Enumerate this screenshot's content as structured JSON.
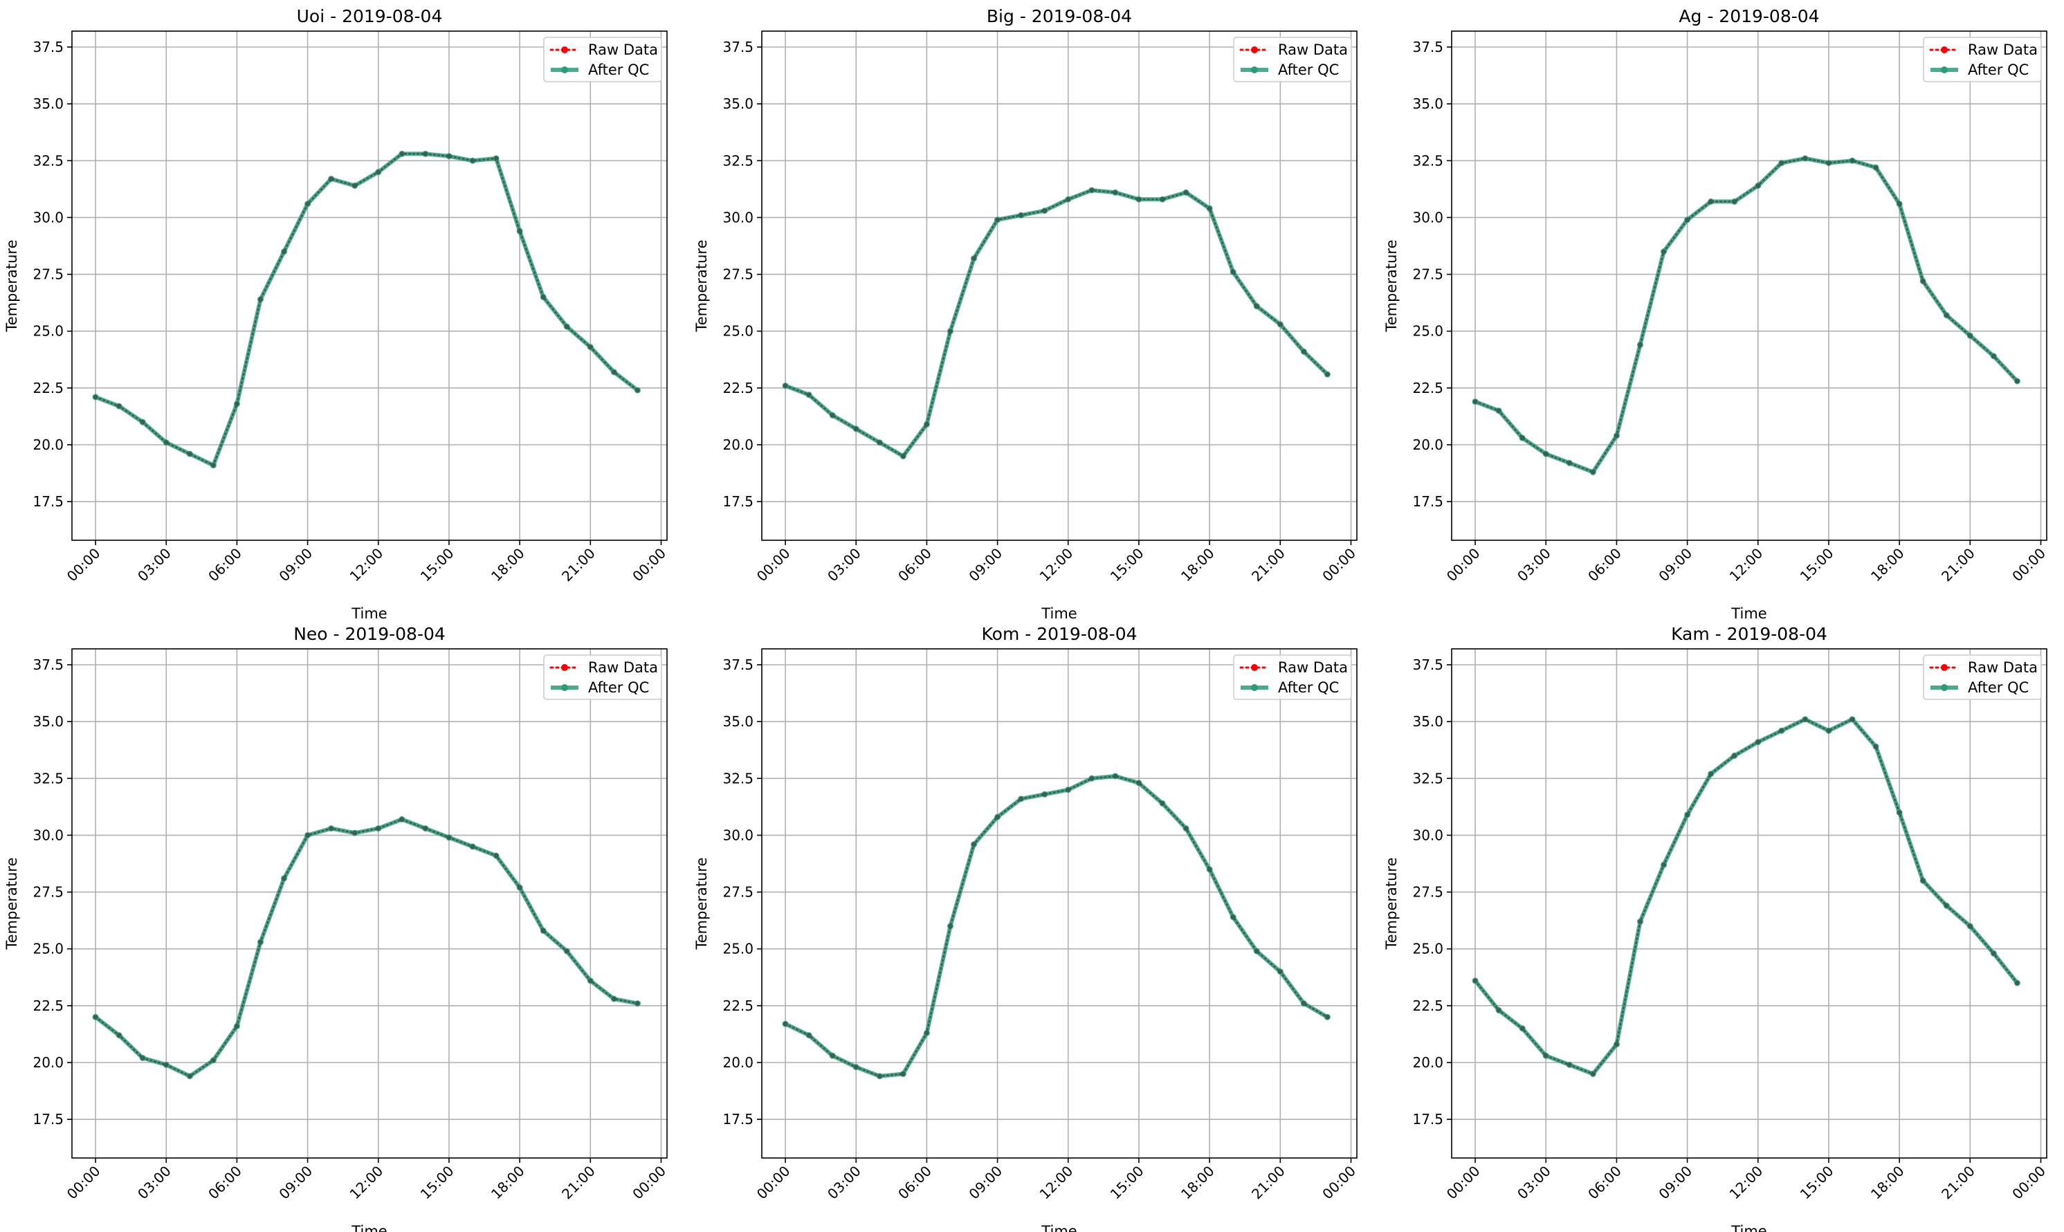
{
  "chart_data": [
    {
      "type": "line",
      "title": "Uoi - 2019-08-04",
      "xlabel": "Time",
      "ylabel": "Temperature",
      "ylim": [
        15.8,
        38.2
      ],
      "xlim": [
        "2019-08-03T23:00",
        "2019-08-05T00:15"
      ],
      "yticks": [
        17.5,
        20.0,
        22.5,
        25.0,
        27.5,
        30.0,
        32.5,
        35.0,
        37.5
      ],
      "xticks": [
        "00:00",
        "03:00",
        "06:00",
        "09:00",
        "12:00",
        "15:00",
        "18:00",
        "21:00",
        "00:00"
      ],
      "x": [
        "00:00",
        "01:00",
        "02:00",
        "03:00",
        "04:00",
        "05:00",
        "06:00",
        "07:00",
        "08:00",
        "09:00",
        "10:00",
        "11:00",
        "12:00",
        "13:00",
        "14:00",
        "15:00",
        "16:00",
        "17:00",
        "18:00",
        "19:00",
        "20:00",
        "21:00",
        "22:00",
        "23:00"
      ],
      "grid": true,
      "legend": "top-right",
      "series": [
        {
          "name": "Raw Data",
          "color": "#ff0000",
          "style": "dotted",
          "marker": "circle",
          "values": [
            22.1,
            21.7,
            21.0,
            20.1,
            19.6,
            19.1,
            21.8,
            26.4,
            28.5,
            30.6,
            31.7,
            31.4,
            32.0,
            32.8,
            32.8,
            32.7,
            32.5,
            32.6,
            29.4,
            26.5,
            25.2,
            24.3,
            23.2,
            22.4
          ]
        },
        {
          "name": "After QC",
          "color": "#2a9d77",
          "style": "solid",
          "marker": "circle",
          "values": [
            22.1,
            21.7,
            21.0,
            20.1,
            19.6,
            19.1,
            21.8,
            26.4,
            28.5,
            30.6,
            31.7,
            31.4,
            32.0,
            32.8,
            32.8,
            32.7,
            32.5,
            32.6,
            29.4,
            26.5,
            25.2,
            24.3,
            23.2,
            22.4
          ]
        }
      ]
    },
    {
      "type": "line",
      "title": "Big - 2019-08-04",
      "xlabel": "Time",
      "ylabel": "Temperature",
      "ylim": [
        15.8,
        38.2
      ],
      "xlim": [
        "2019-08-03T23:00",
        "2019-08-05T00:15"
      ],
      "yticks": [
        17.5,
        20.0,
        22.5,
        25.0,
        27.5,
        30.0,
        32.5,
        35.0,
        37.5
      ],
      "xticks": [
        "00:00",
        "03:00",
        "06:00",
        "09:00",
        "12:00",
        "15:00",
        "18:00",
        "21:00",
        "00:00"
      ],
      "x": [
        "00:00",
        "01:00",
        "02:00",
        "03:00",
        "04:00",
        "05:00",
        "06:00",
        "07:00",
        "08:00",
        "09:00",
        "10:00",
        "11:00",
        "12:00",
        "13:00",
        "14:00",
        "15:00",
        "16:00",
        "17:00",
        "18:00",
        "19:00",
        "20:00",
        "21:00",
        "22:00",
        "23:00"
      ],
      "grid": true,
      "legend": "top-right",
      "series": [
        {
          "name": "Raw Data",
          "color": "#ff0000",
          "style": "dotted",
          "marker": "circle",
          "values": [
            22.6,
            22.2,
            21.3,
            20.7,
            20.1,
            19.5,
            20.9,
            25.0,
            28.2,
            29.9,
            30.1,
            30.3,
            30.8,
            31.2,
            31.1,
            30.8,
            30.8,
            31.1,
            30.4,
            27.6,
            26.1,
            25.3,
            24.1,
            23.1
          ]
        },
        {
          "name": "After QC",
          "color": "#2a9d77",
          "style": "solid",
          "marker": "circle",
          "values": [
            22.6,
            22.2,
            21.3,
            20.7,
            20.1,
            19.5,
            20.9,
            25.0,
            28.2,
            29.9,
            30.1,
            30.3,
            30.8,
            31.2,
            31.1,
            30.8,
            30.8,
            31.1,
            30.4,
            27.6,
            26.1,
            25.3,
            24.1,
            23.1
          ]
        }
      ]
    },
    {
      "type": "line",
      "title": "Ag - 2019-08-04",
      "xlabel": "Time",
      "ylabel": "Temperature",
      "ylim": [
        15.8,
        38.2
      ],
      "xlim": [
        "2019-08-03T23:00",
        "2019-08-05T00:15"
      ],
      "yticks": [
        17.5,
        20.0,
        22.5,
        25.0,
        27.5,
        30.0,
        32.5,
        35.0,
        37.5
      ],
      "xticks": [
        "00:00",
        "03:00",
        "06:00",
        "09:00",
        "12:00",
        "15:00",
        "18:00",
        "21:00",
        "00:00"
      ],
      "x": [
        "00:00",
        "01:00",
        "02:00",
        "03:00",
        "04:00",
        "05:00",
        "06:00",
        "07:00",
        "08:00",
        "09:00",
        "10:00",
        "11:00",
        "12:00",
        "13:00",
        "14:00",
        "15:00",
        "16:00",
        "17:00",
        "18:00",
        "19:00",
        "20:00",
        "21:00",
        "22:00",
        "23:00"
      ],
      "grid": true,
      "legend": "top-right",
      "series": [
        {
          "name": "Raw Data",
          "color": "#ff0000",
          "style": "dotted",
          "marker": "circle",
          "values": [
            21.9,
            21.5,
            20.3,
            19.6,
            19.2,
            18.8,
            20.4,
            24.4,
            28.5,
            29.9,
            30.7,
            30.7,
            31.4,
            32.4,
            32.6,
            32.4,
            32.5,
            32.2,
            30.6,
            27.2,
            25.7,
            24.8,
            23.9,
            22.8
          ]
        },
        {
          "name": "After QC",
          "color": "#2a9d77",
          "style": "solid",
          "marker": "circle",
          "values": [
            21.9,
            21.5,
            20.3,
            19.6,
            19.2,
            18.8,
            20.4,
            24.4,
            28.5,
            29.9,
            30.7,
            30.7,
            31.4,
            32.4,
            32.6,
            32.4,
            32.5,
            32.2,
            30.6,
            27.2,
            25.7,
            24.8,
            23.9,
            22.8
          ]
        }
      ]
    },
    {
      "type": "line",
      "title": "Neo - 2019-08-04",
      "xlabel": "Time",
      "ylabel": "Temperature",
      "ylim": [
        15.8,
        38.2
      ],
      "xlim": [
        "2019-08-03T23:00",
        "2019-08-05T00:15"
      ],
      "yticks": [
        17.5,
        20.0,
        22.5,
        25.0,
        27.5,
        30.0,
        32.5,
        35.0,
        37.5
      ],
      "xticks": [
        "00:00",
        "03:00",
        "06:00",
        "09:00",
        "12:00",
        "15:00",
        "18:00",
        "21:00",
        "00:00"
      ],
      "x": [
        "00:00",
        "01:00",
        "02:00",
        "03:00",
        "04:00",
        "05:00",
        "06:00",
        "07:00",
        "08:00",
        "09:00",
        "10:00",
        "11:00",
        "12:00",
        "13:00",
        "14:00",
        "15:00",
        "16:00",
        "17:00",
        "18:00",
        "19:00",
        "20:00",
        "21:00",
        "22:00",
        "23:00"
      ],
      "grid": true,
      "legend": "top-right",
      "series": [
        {
          "name": "Raw Data",
          "color": "#ff0000",
          "style": "dotted",
          "marker": "circle",
          "values": [
            22.0,
            21.2,
            20.2,
            19.9,
            19.4,
            20.1,
            21.6,
            25.3,
            28.1,
            30.0,
            30.3,
            30.1,
            30.3,
            30.7,
            30.3,
            29.9,
            29.5,
            29.1,
            27.7,
            25.8,
            24.9,
            23.6,
            22.8,
            22.6
          ]
        },
        {
          "name": "After QC",
          "color": "#2a9d77",
          "style": "solid",
          "marker": "circle",
          "values": [
            22.0,
            21.2,
            20.2,
            19.9,
            19.4,
            20.1,
            21.6,
            25.3,
            28.1,
            30.0,
            30.3,
            30.1,
            30.3,
            30.7,
            30.3,
            29.9,
            29.5,
            29.1,
            27.7,
            25.8,
            24.9,
            23.6,
            22.8,
            22.6
          ]
        }
      ]
    },
    {
      "type": "line",
      "title": "Kom - 2019-08-04",
      "xlabel": "Time",
      "ylabel": "Temperature",
      "ylim": [
        15.8,
        38.2
      ],
      "xlim": [
        "2019-08-03T23:00",
        "2019-08-05T00:15"
      ],
      "yticks": [
        17.5,
        20.0,
        22.5,
        25.0,
        27.5,
        30.0,
        32.5,
        35.0,
        37.5
      ],
      "xticks": [
        "00:00",
        "03:00",
        "06:00",
        "09:00",
        "12:00",
        "15:00",
        "18:00",
        "21:00",
        "00:00"
      ],
      "x": [
        "00:00",
        "01:00",
        "02:00",
        "03:00",
        "04:00",
        "05:00",
        "06:00",
        "07:00",
        "08:00",
        "09:00",
        "10:00",
        "11:00",
        "12:00",
        "13:00",
        "14:00",
        "15:00",
        "16:00",
        "17:00",
        "18:00",
        "19:00",
        "20:00",
        "21:00",
        "22:00",
        "23:00"
      ],
      "grid": true,
      "legend": "top-right",
      "series": [
        {
          "name": "Raw Data",
          "color": "#ff0000",
          "style": "dotted",
          "marker": "circle",
          "values": [
            21.7,
            21.2,
            20.3,
            19.8,
            19.4,
            19.5,
            21.3,
            26.0,
            29.6,
            30.8,
            31.6,
            31.8,
            32.0,
            32.5,
            32.6,
            32.3,
            31.4,
            30.3,
            28.5,
            26.4,
            24.9,
            24.0,
            22.6,
            22.0
          ]
        },
        {
          "name": "After QC",
          "color": "#2a9d77",
          "style": "solid",
          "marker": "circle",
          "values": [
            21.7,
            21.2,
            20.3,
            19.8,
            19.4,
            19.5,
            21.3,
            26.0,
            29.6,
            30.8,
            31.6,
            31.8,
            32.0,
            32.5,
            32.6,
            32.3,
            31.4,
            30.3,
            28.5,
            26.4,
            24.9,
            24.0,
            22.6,
            22.0
          ]
        }
      ]
    },
    {
      "type": "line",
      "title": "Kam - 2019-08-04",
      "xlabel": "Time",
      "ylabel": "Temperature",
      "ylim": [
        15.8,
        38.2
      ],
      "xlim": [
        "2019-08-03T23:00",
        "2019-08-05T00:15"
      ],
      "yticks": [
        17.5,
        20.0,
        22.5,
        25.0,
        27.5,
        30.0,
        32.5,
        35.0,
        37.5
      ],
      "xticks": [
        "00:00",
        "03:00",
        "06:00",
        "09:00",
        "12:00",
        "15:00",
        "18:00",
        "21:00",
        "00:00"
      ],
      "x": [
        "00:00",
        "01:00",
        "02:00",
        "03:00",
        "04:00",
        "05:00",
        "06:00",
        "07:00",
        "08:00",
        "09:00",
        "10:00",
        "11:00",
        "12:00",
        "13:00",
        "14:00",
        "15:00",
        "16:00",
        "17:00",
        "18:00",
        "19:00",
        "20:00",
        "21:00",
        "22:00",
        "23:00"
      ],
      "grid": true,
      "legend": "top-right",
      "series": [
        {
          "name": "Raw Data",
          "color": "#ff0000",
          "style": "dotted",
          "marker": "circle",
          "values": [
            23.6,
            22.3,
            21.5,
            20.3,
            19.9,
            19.5,
            20.8,
            26.2,
            28.7,
            30.9,
            32.7,
            33.5,
            34.1,
            34.6,
            35.1,
            34.6,
            35.1,
            33.9,
            31.0,
            28.0,
            26.9,
            26.0,
            24.8,
            23.5
          ]
        },
        {
          "name": "After QC",
          "color": "#2a9d77",
          "style": "solid",
          "marker": "circle",
          "values": [
            23.6,
            22.3,
            21.5,
            20.3,
            19.9,
            19.5,
            20.8,
            26.2,
            28.7,
            30.9,
            32.7,
            33.5,
            34.1,
            34.6,
            35.1,
            34.6,
            35.1,
            33.9,
            31.0,
            28.0,
            26.9,
            26.0,
            24.8,
            23.5
          ]
        }
      ]
    }
  ]
}
